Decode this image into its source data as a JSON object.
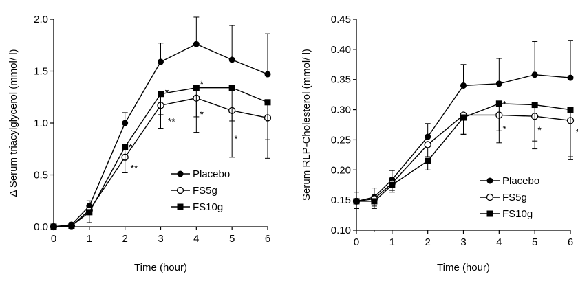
{
  "chart_data": [
    {
      "type": "line",
      "xlabel": "Time (hour)",
      "ylabel": "Δ Serum triacylglycerol (mmol/ l)",
      "xlim": [
        0,
        6
      ],
      "ylim": [
        0,
        2.0
      ],
      "xticks": [
        "0",
        "1",
        "2",
        "3",
        "4",
        "5",
        "6"
      ],
      "yticks": [
        "0.0",
        "0.5",
        "1.0",
        "1.5",
        "2.0"
      ],
      "x": [
        0,
        0.5,
        1,
        2,
        3,
        4,
        5,
        6
      ],
      "legend_position": "bottom-right",
      "series": [
        {
          "name": "Placebo",
          "marker": "filled-circle",
          "values": [
            0,
            0.02,
            0.2,
            1.0,
            1.59,
            1.76,
            1.61,
            1.47
          ],
          "errors": [
            0,
            0.02,
            0.05,
            0.1,
            0.18,
            0.26,
            0.33,
            0.39
          ]
        },
        {
          "name": "FS5g",
          "marker": "open-circle",
          "values": [
            0,
            0.01,
            0.16,
            0.67,
            1.17,
            1.24,
            1.12,
            1.05
          ],
          "errors": [
            0,
            0.02,
            0.04,
            0.15,
            0.22,
            0.33,
            0.45,
            0.39
          ]
        },
        {
          "name": "FS10g",
          "marker": "filled-square",
          "values": [
            0,
            0.01,
            0.14,
            0.77,
            1.28,
            1.34,
            1.34,
            1.2
          ],
          "errors": [
            0,
            0.02,
            0.1,
            0.12,
            0.2,
            0.28,
            0.32,
            0.36
          ]
        }
      ],
      "annotations": [
        {
          "text": "*",
          "x": 2.1,
          "y": 0.8
        },
        {
          "text": "**",
          "x": 2.15,
          "y": 0.6
        },
        {
          "text": "*",
          "x": 3.12,
          "y": 1.33
        },
        {
          "text": "**",
          "x": 3.2,
          "y": 1.05
        },
        {
          "text": "*",
          "x": 4.1,
          "y": 1.41
        },
        {
          "text": "*",
          "x": 4.1,
          "y": 1.12
        },
        {
          "text": "*",
          "x": 5.06,
          "y": 0.88
        }
      ]
    },
    {
      "type": "line",
      "xlabel": "Time (hour)",
      "ylabel": "Serum RLP-Cholesterol (mmol/ l)",
      "xlim": [
        0,
        6
      ],
      "ylim": [
        0.1,
        0.45
      ],
      "xticks": [
        "0",
        "1",
        "2",
        "3",
        "4",
        "5",
        "6"
      ],
      "yticks": [
        "0.10",
        "0.15",
        "0.20",
        "0.25",
        "0.30",
        "0.35",
        "0.40",
        "0.45"
      ],
      "x": [
        0,
        0.5,
        1,
        2,
        3,
        4,
        5,
        6
      ],
      "legend_position": "bottom-right",
      "series": [
        {
          "name": "Placebo",
          "marker": "filled-circle",
          "values": [
            0.148,
            0.155,
            0.184,
            0.255,
            0.34,
            0.343,
            0.358,
            0.353
          ],
          "errors": [
            0.015,
            0.015,
            0.015,
            0.022,
            0.035,
            0.042,
            0.055,
            0.062
          ]
        },
        {
          "name": "FS5g",
          "marker": "open-circle",
          "values": [
            0.148,
            0.152,
            0.178,
            0.242,
            0.291,
            0.291,
            0.289,
            0.282
          ],
          "errors": [
            0.012,
            0.012,
            0.012,
            0.02,
            0.03,
            0.046,
            0.054,
            0.065
          ]
        },
        {
          "name": "FS10g",
          "marker": "filled-square",
          "values": [
            0.148,
            0.148,
            0.175,
            0.215,
            0.287,
            0.31,
            0.308,
            0.3
          ],
          "errors": [
            0.012,
            0.012,
            0.012,
            0.015,
            0.028,
            0.045,
            0.06,
            0.078
          ]
        }
      ],
      "annotations": [
        {
          "text": "*",
          "x": 4.1,
          "y": 0.315
        },
        {
          "text": "*",
          "x": 4.1,
          "y": 0.274
        },
        {
          "text": "*",
          "x": 5.08,
          "y": 0.272
        },
        {
          "text": "*",
          "x": 6.15,
          "y": 0.268
        }
      ]
    }
  ]
}
